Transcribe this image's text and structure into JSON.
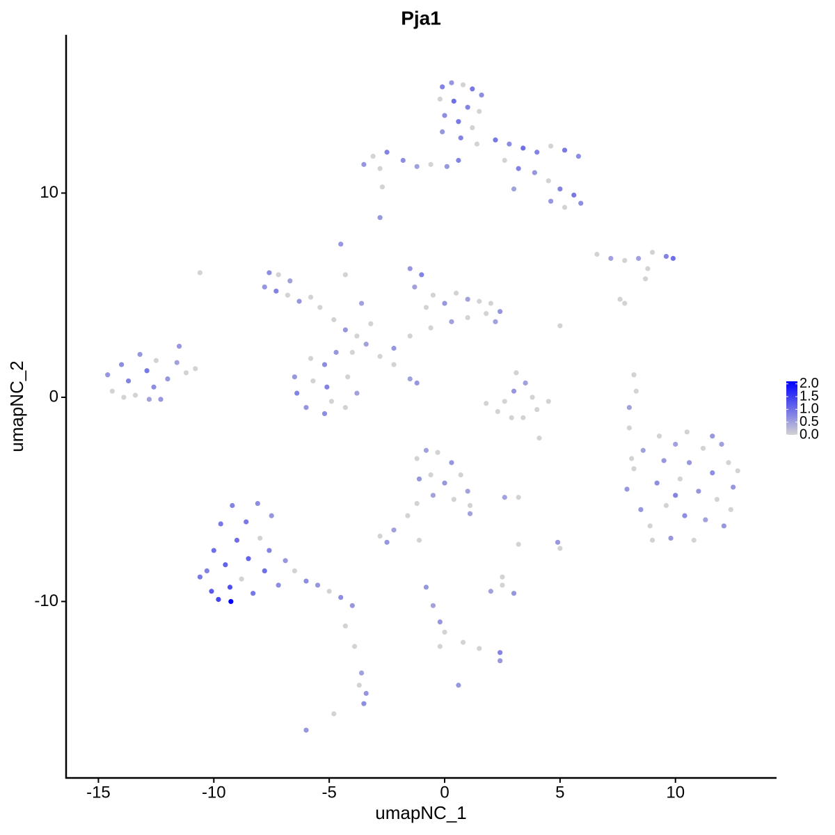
{
  "chart_data": {
    "type": "scatter",
    "title": "Pja1",
    "x_label": "umapNC_1",
    "y_label": "umapNC_2",
    "xlim": [
      -16.4,
      14.35
    ],
    "ylim": [
      -18.64,
      17.75
    ],
    "xticks": [
      -15,
      -10,
      -5,
      0,
      5,
      10
    ],
    "yticks": [
      -10,
      0,
      10
    ],
    "grid": false,
    "low_color": "#d3d3d3",
    "high_color": "#0000ff",
    "colorbar_lim": [
      0,
      2.1
    ],
    "colorbar_ticks": [
      {
        "value": 0,
        "label": "0.0"
      },
      {
        "value": 0.5,
        "label": "0.5"
      },
      {
        "value": 1,
        "label": "1.0"
      },
      {
        "value": 1.5,
        "label": "1.5"
      },
      {
        "value": 2,
        "label": "2.0"
      }
    ],
    "points": [
      [
        -0.1,
        15.2,
        0.8
      ],
      [
        0.3,
        15.4,
        0.6
      ],
      [
        0.8,
        15.3,
        0
      ],
      [
        1.2,
        15.1,
        0.9
      ],
      [
        1.6,
        14.8,
        0.7
      ],
      [
        -0.2,
        14.6,
        0
      ],
      [
        0.4,
        14.5,
        1.0
      ],
      [
        1.0,
        14.2,
        0.8
      ],
      [
        1.5,
        14.0,
        0
      ],
      [
        0.0,
        13.8,
        0.7
      ],
      [
        0.6,
        13.5,
        0.9
      ],
      [
        1.2,
        13.2,
        0
      ],
      [
        -0.1,
        13.0,
        0.6
      ],
      [
        0.7,
        12.7,
        0.8
      ],
      [
        1.4,
        12.4,
        0
      ],
      [
        2.2,
        12.6,
        0.9
      ],
      [
        2.8,
        12.4,
        0.7
      ],
      [
        3.4,
        12.2,
        1.0
      ],
      [
        4.0,
        12.0,
        0.8
      ],
      [
        4.6,
        12.3,
        0
      ],
      [
        5.2,
        12.1,
        0.9
      ],
      [
        5.8,
        11.8,
        0.7
      ],
      [
        2.6,
        11.6,
        0
      ],
      [
        3.2,
        11.2,
        0.8
      ],
      [
        3.9,
        11.0,
        0.6
      ],
      [
        4.5,
        10.6,
        0
      ],
      [
        5.0,
        10.2,
        0.8
      ],
      [
        5.6,
        9.9,
        0.9
      ],
      [
        5.9,
        9.5,
        0.7
      ],
      [
        5.2,
        9.3,
        0
      ],
      [
        4.6,
        9.6,
        0.6
      ],
      [
        3.0,
        10.2,
        0.5
      ],
      [
        0.6,
        11.6,
        0.8
      ],
      [
        0.1,
        11.3,
        0.6
      ],
      [
        -0.6,
        11.4,
        0
      ],
      [
        -1.2,
        11.3,
        0.5
      ],
      [
        -1.8,
        11.6,
        0.7
      ],
      [
        -2.5,
        12.0,
        0.8
      ],
      [
        -3.1,
        11.8,
        0
      ],
      [
        -3.5,
        11.4,
        0.6
      ],
      [
        -2.8,
        11.2,
        0
      ],
      [
        -2.7,
        10.3,
        0
      ],
      [
        -2.8,
        8.8,
        0.6
      ],
      [
        -7.6,
        6.1,
        0.7
      ],
      [
        -7.2,
        6.0,
        0
      ],
      [
        -7.8,
        5.4,
        0.6
      ],
      [
        -7.3,
        5.2,
        0.8
      ],
      [
        -6.8,
        5.0,
        0
      ],
      [
        -6.3,
        4.7,
        0.6
      ],
      [
        -5.8,
        4.9,
        0
      ],
      [
        -6.7,
        5.7,
        0.5
      ],
      [
        -5.4,
        4.4,
        0
      ],
      [
        -4.8,
        3.8,
        0
      ],
      [
        -4.3,
        3.3,
        0.6
      ],
      [
        -3.8,
        3.0,
        0
      ],
      [
        -3.4,
        2.6,
        0.5
      ],
      [
        -4.0,
        2.2,
        0
      ],
      [
        -3.2,
        3.6,
        0
      ],
      [
        -3.6,
        4.6,
        0.5
      ],
      [
        -4.5,
        7.5,
        0.6
      ],
      [
        -4.3,
        6.0,
        0
      ],
      [
        -2.8,
        2.0,
        0
      ],
      [
        -2.2,
        1.6,
        0
      ],
      [
        -1.5,
        0.9,
        0.5
      ],
      [
        -1.2,
        0.7,
        0.6
      ],
      [
        -1.5,
        6.3,
        0.6
      ],
      [
        -1.0,
        6.0,
        0.8
      ],
      [
        -1.3,
        5.4,
        0.5
      ],
      [
        -0.5,
        5.0,
        0
      ],
      [
        0.0,
        4.6,
        0.6
      ],
      [
        -0.8,
        4.4,
        0
      ],
      [
        0.5,
        5.1,
        0
      ],
      [
        1.0,
        4.8,
        0.5
      ],
      [
        1.5,
        4.7,
        0
      ],
      [
        2.0,
        4.6,
        0
      ],
      [
        2.4,
        4.2,
        0.6
      ],
      [
        1.8,
        4.1,
        0
      ],
      [
        2.2,
        3.7,
        0.5
      ],
      [
        1.0,
        3.9,
        0
      ],
      [
        0.3,
        3.7,
        0.5
      ],
      [
        -0.6,
        3.4,
        0
      ],
      [
        -1.5,
        3.0,
        0
      ],
      [
        -2.2,
        2.4,
        0.6
      ],
      [
        -6.5,
        1.0,
        0.6
      ],
      [
        -6.4,
        0.2,
        0.8
      ],
      [
        -6.0,
        -0.5,
        0.6
      ],
      [
        -5.2,
        -0.8,
        0.7
      ],
      [
        -4.3,
        -0.5,
        0
      ],
      [
        -3.8,
        0.2,
        0.5
      ],
      [
        -4.2,
        1.0,
        0
      ],
      [
        -5.2,
        1.6,
        0.7
      ],
      [
        -5.8,
        1.9,
        0
      ],
      [
        -4.7,
        2.2,
        0.6
      ],
      [
        -5.1,
        0.5,
        0.8
      ],
      [
        -5.7,
        0.8,
        0
      ],
      [
        -4.9,
        -0.2,
        0
      ],
      [
        -14.6,
        1.1,
        0.6
      ],
      [
        -14.4,
        0.3,
        0
      ],
      [
        -14.0,
        1.6,
        0.7
      ],
      [
        -13.7,
        0.8,
        0.8
      ],
      [
        -13.4,
        0.1,
        0
      ],
      [
        -13.2,
        2.1,
        0.6
      ],
      [
        -12.9,
        1.3,
        0.9
      ],
      [
        -12.6,
        0.5,
        0.7
      ],
      [
        -12.3,
        -0.1,
        0.6
      ],
      [
        -12.5,
        1.8,
        0
      ],
      [
        -12.0,
        0.9,
        0.6
      ],
      [
        -11.6,
        1.7,
        0.5
      ],
      [
        -11.2,
        1.2,
        0
      ],
      [
        -11.5,
        2.5,
        0.6
      ],
      [
        -13.9,
        0.0,
        0
      ],
      [
        -12.8,
        -0.1,
        0.5
      ],
      [
        -10.8,
        1.4,
        0
      ],
      [
        -10.6,
        6.1,
        0
      ],
      [
        1.8,
        -0.3,
        0
      ],
      [
        2.3,
        -0.7,
        0
      ],
      [
        2.9,
        -1.0,
        0
      ],
      [
        3.4,
        -1.0,
        0
      ],
      [
        4.0,
        -0.6,
        0
      ],
      [
        4.5,
        -0.2,
        0
      ],
      [
        3.0,
        0.3,
        0.6
      ],
      [
        3.5,
        0.7,
        0.5
      ],
      [
        3.1,
        1.2,
        0
      ],
      [
        2.6,
        -0.2,
        0
      ],
      [
        3.8,
        0.0,
        0
      ],
      [
        4.1,
        -2.0,
        0
      ],
      [
        7.9,
        -4.5,
        0.6
      ],
      [
        8.2,
        -3.5,
        0
      ],
      [
        8.5,
        -5.5,
        0.6
      ],
      [
        8.6,
        -2.6,
        0.5
      ],
      [
        8.9,
        -6.3,
        0
      ],
      [
        9.2,
        -4.2,
        0.7
      ],
      [
        9.3,
        -1.9,
        0
      ],
      [
        9.5,
        -3.1,
        0.6
      ],
      [
        9.6,
        -5.3,
        0
      ],
      [
        9.8,
        -6.9,
        0.6
      ],
      [
        10.0,
        -2.3,
        0.5
      ],
      [
        10.2,
        -4.0,
        0
      ],
      [
        10.4,
        -5.8,
        0.7
      ],
      [
        10.5,
        -1.7,
        0
      ],
      [
        10.6,
        -3.2,
        0.6
      ],
      [
        10.8,
        -7.0,
        0
      ],
      [
        11.0,
        -4.6,
        0.6
      ],
      [
        11.2,
        -2.5,
        0
      ],
      [
        11.3,
        -6.0,
        0.5
      ],
      [
        11.6,
        -3.7,
        0.7
      ],
      [
        11.8,
        -5.0,
        0
      ],
      [
        12.0,
        -2.3,
        0.5
      ],
      [
        12.1,
        -6.3,
        0.6
      ],
      [
        12.3,
        -3.2,
        0
      ],
      [
        12.5,
        -4.4,
        0.6
      ],
      [
        12.7,
        -3.6,
        0
      ],
      [
        12.4,
        -5.5,
        0
      ],
      [
        11.6,
        -1.9,
        0.6
      ],
      [
        9.0,
        -7.0,
        0
      ],
      [
        10.0,
        -4.8,
        0.8
      ],
      [
        8.1,
        -3.0,
        0
      ],
      [
        8.0,
        -1.5,
        0
      ],
      [
        8.3,
        0.3,
        0
      ],
      [
        8.0,
        -0.5,
        0.5
      ],
      [
        8.2,
        1.1,
        0
      ],
      [
        -10.3,
        -8.5,
        0.8
      ],
      [
        -10.0,
        -7.5,
        1.0
      ],
      [
        -10.1,
        -9.5,
        1.2
      ],
      [
        -9.7,
        -6.2,
        0.9
      ],
      [
        -9.5,
        -8.2,
        1.1
      ],
      [
        -9.3,
        -9.3,
        1.3
      ],
      [
        -9.2,
        -5.3,
        0.8
      ],
      [
        -9.0,
        -7.0,
        1.0
      ],
      [
        -8.8,
        -8.9,
        0
      ],
      [
        -8.6,
        -6.1,
        0.9
      ],
      [
        -8.5,
        -7.9,
        1.1
      ],
      [
        -8.3,
        -9.6,
        0.9
      ],
      [
        -8.1,
        -5.2,
        0.7
      ],
      [
        -8.0,
        -6.9,
        0
      ],
      [
        -7.8,
        -8.5,
        1.0
      ],
      [
        -7.6,
        -7.5,
        0.8
      ],
      [
        -7.5,
        -5.8,
        0.6
      ],
      [
        -7.2,
        -9.2,
        0.7
      ],
      [
        -6.9,
        -8.0,
        0.6
      ],
      [
        -6.5,
        -8.5,
        0
      ],
      [
        -6.0,
        -9.0,
        0.7
      ],
      [
        -5.5,
        -9.2,
        0.6
      ],
      [
        -5.0,
        -9.5,
        0
      ],
      [
        -4.5,
        -9.8,
        0.7
      ],
      [
        -4.0,
        -10.2,
        0.6
      ],
      [
        -4.3,
        -11.2,
        0
      ],
      [
        -3.9,
        -12.2,
        0
      ],
      [
        -3.6,
        -13.5,
        0.5
      ],
      [
        -3.4,
        -14.5,
        0.6
      ],
      [
        -3.5,
        -15.0,
        0.7
      ],
      [
        -3.7,
        -14.1,
        0
      ],
      [
        -4.8,
        -15.5,
        0
      ],
      [
        -6.0,
        -16.3,
        0.6
      ],
      [
        -10.6,
        -8.8,
        0.9
      ],
      [
        -9.8,
        -9.9,
        1.4
      ],
      [
        -9.26,
        -10.0,
        2.1
      ],
      [
        -1.2,
        -3.0,
        0
      ],
      [
        -0.8,
        -2.6,
        0.5
      ],
      [
        -0.3,
        -2.7,
        0
      ],
      [
        0.3,
        -3.2,
        0.6
      ],
      [
        0.7,
        -3.8,
        0
      ],
      [
        1.0,
        -4.6,
        0.5
      ],
      [
        1.1,
        -5.3,
        0
      ],
      [
        -1.1,
        -4.0,
        0.6
      ],
      [
        -0.6,
        -3.8,
        0
      ],
      [
        0.0,
        -4.2,
        0.6
      ],
      [
        -0.5,
        -4.8,
        0.5
      ],
      [
        0.4,
        -5.0,
        0
      ],
      [
        -1.2,
        -5.2,
        0
      ],
      [
        -1.6,
        -5.8,
        0
      ],
      [
        -2.2,
        -6.5,
        0.5
      ],
      [
        -2.8,
        -6.8,
        0
      ],
      [
        -2.5,
        -7.1,
        0.6
      ],
      [
        1.1,
        -5.7,
        0.5
      ],
      [
        2.6,
        -4.9,
        0.5
      ],
      [
        3.2,
        -4.9,
        0
      ],
      [
        -1.1,
        -7.0,
        0
      ],
      [
        -0.8,
        -9.3,
        0.6
      ],
      [
        -0.5,
        -10.2,
        0.5
      ],
      [
        -0.2,
        -11.0,
        0.6
      ],
      [
        0.0,
        -11.5,
        0
      ],
      [
        0.8,
        -12.0,
        0
      ],
      [
        1.5,
        -12.3,
        0
      ],
      [
        2.4,
        -12.5,
        0.8
      ],
      [
        2.4,
        -12.9,
        0.6
      ],
      [
        -0.2,
        -12.2,
        0
      ],
      [
        0.6,
        -14.1,
        0.6
      ],
      [
        2.0,
        -9.5,
        0.5
      ],
      [
        2.5,
        -9.2,
        0
      ],
      [
        3.0,
        -9.6,
        0.6
      ],
      [
        2.5,
        -8.8,
        0
      ],
      [
        3.2,
        -7.2,
        0
      ],
      [
        4.9,
        -7.1,
        0.6
      ],
      [
        5.0,
        -7.4,
        0
      ],
      [
        6.6,
        7.0,
        0
      ],
      [
        7.2,
        6.8,
        0.5
      ],
      [
        7.8,
        6.7,
        0
      ],
      [
        8.4,
        6.8,
        0.5
      ],
      [
        9.0,
        7.1,
        0
      ],
      [
        9.6,
        6.9,
        0.8
      ],
      [
        9.9,
        6.8,
        1.0
      ],
      [
        8.8,
        6.3,
        0
      ],
      [
        8.7,
        5.8,
        0
      ],
      [
        7.6,
        4.8,
        0
      ],
      [
        7.8,
        4.6,
        0
      ],
      [
        5.0,
        3.5,
        0
      ]
    ]
  }
}
